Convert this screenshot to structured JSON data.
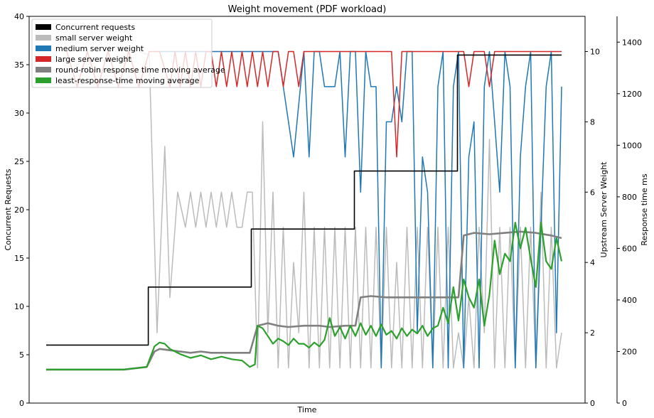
{
  "chart_data": {
    "type": "line",
    "title": "Weight movement (PDF workload)",
    "xlabel": "Time",
    "ylabel_left": "Concurrent Requests",
    "ylabel_right1": "Upstream Server Weight",
    "ylabel_right2": "Response time ms",
    "ylim_left": [
      0,
      40
    ],
    "ylim_right1": [
      0,
      11
    ],
    "ylim_right2": [
      0,
      1500
    ],
    "yticks_left": [
      0,
      5,
      10,
      15,
      20,
      25,
      30,
      35,
      40
    ],
    "yticks_right1": [
      0,
      2,
      4,
      6,
      8,
      10
    ],
    "yticks_right2": [
      0,
      200,
      400,
      600,
      800,
      1000,
      1200,
      1400
    ],
    "xlim": [
      0,
      100
    ],
    "legend_position": "top-left",
    "series": [
      {
        "name": "Concurrent requests",
        "axis": "left",
        "color": "#000000",
        "step": true,
        "x": [
          0,
          19.8,
          19.8,
          39.8,
          39.8,
          59.8,
          59.8,
          79.8,
          79.8,
          100
        ],
        "y": [
          6,
          6,
          12,
          12,
          18,
          18,
          24,
          24,
          36,
          36
        ]
      },
      {
        "name": "small server weight",
        "axis": "right1",
        "color": "#bbbbbb",
        "x": [
          18,
          20,
          21.5,
          23,
          24,
          25.5,
          27,
          28,
          29,
          30,
          31,
          32,
          33,
          34,
          35,
          36,
          37,
          38,
          39,
          40,
          41,
          42,
          43,
          44,
          45,
          46,
          47,
          48,
          49,
          50,
          51,
          52,
          53,
          54,
          55,
          56,
          57,
          58,
          59,
          60,
          61,
          62,
          63,
          64,
          65,
          66,
          67,
          68,
          69,
          70,
          71,
          72,
          73,
          74,
          75,
          76,
          77,
          78,
          79,
          80,
          81,
          82,
          83,
          84,
          85,
          86,
          87,
          88,
          89,
          90,
          91,
          92,
          93,
          94,
          95,
          96,
          97,
          98,
          99,
          100
        ],
        "y": [
          10,
          9.9,
          2,
          7.3,
          3,
          6,
          5,
          6,
          5,
          6,
          5,
          6,
          5,
          6,
          5,
          6,
          5,
          5,
          6,
          6,
          1,
          8,
          2,
          6,
          1,
          5,
          1,
          4,
          2,
          6,
          1,
          5,
          1,
          5,
          1,
          5,
          1,
          5,
          1,
          5,
          1,
          5,
          1,
          5,
          1,
          5,
          1,
          4,
          1,
          5,
          1,
          5,
          1,
          5,
          1,
          5,
          1,
          5,
          1,
          2,
          1,
          3,
          1,
          5,
          2,
          7.5,
          1,
          5,
          1,
          5,
          1,
          5,
          1,
          5,
          1,
          6,
          1,
          5,
          1,
          2
        ]
      },
      {
        "name": "medium server weight",
        "axis": "right1",
        "color": "#1f77b4",
        "x": [
          22,
          42,
          45,
          47,
          48,
          50,
          51,
          52,
          53,
          54,
          55,
          56,
          57,
          58,
          59,
          60,
          61,
          62,
          63,
          64,
          65,
          66,
          67,
          68,
          69,
          70,
          71,
          72,
          73,
          74,
          75,
          76,
          77,
          78,
          79,
          80,
          81,
          82,
          83,
          84,
          85,
          86,
          87,
          88,
          89,
          90,
          91,
          92,
          93,
          94,
          95,
          96,
          97,
          98,
          99,
          100
        ],
        "y": [
          10,
          10,
          10,
          8,
          7,
          10,
          7,
          10,
          10,
          9,
          9,
          9,
          10,
          7,
          10,
          10,
          6,
          10,
          9,
          9,
          1,
          8,
          8,
          9,
          8,
          10,
          10,
          2,
          7,
          6,
          1,
          9,
          10,
          1,
          9,
          10,
          1,
          7,
          8,
          1,
          9,
          10,
          8,
          6,
          10,
          9,
          1,
          7,
          9,
          10,
          1,
          5,
          9,
          10,
          2,
          9
        ]
      },
      {
        "name": "large server weight",
        "axis": "right1",
        "color": "#d62728",
        "x": [
          4,
          6,
          8,
          10,
          12,
          14,
          16,
          18,
          20,
          22,
          24,
          25,
          26,
          27,
          28,
          29,
          30,
          31,
          32,
          33,
          34,
          35,
          36,
          37,
          38,
          39,
          40,
          41,
          42,
          43,
          44,
          45,
          46,
          47,
          48,
          49,
          50,
          51,
          52,
          53,
          54,
          55,
          56,
          57,
          58,
          59,
          60,
          61,
          62,
          63,
          64,
          65,
          66,
          67,
          68,
          69,
          70,
          71,
          72,
          73,
          74,
          75,
          76,
          77,
          78,
          79,
          80,
          81,
          82,
          83,
          84,
          85,
          86,
          87,
          88,
          89,
          90,
          91,
          92,
          93,
          94,
          95,
          96,
          97,
          98,
          99,
          100
        ],
        "y": [
          10,
          9,
          10,
          9,
          10,
          9,
          10,
          9,
          10,
          10,
          9,
          10,
          9,
          10,
          9,
          10,
          9,
          10,
          10,
          9,
          10,
          9,
          10,
          9,
          10,
          9,
          10,
          9,
          10,
          9,
          10,
          10,
          9,
          10,
          10,
          9,
          10,
          10,
          10,
          10,
          10,
          10,
          10,
          10,
          10,
          10,
          10,
          10,
          10,
          10,
          10,
          10,
          10,
          10,
          7,
          10,
          10,
          10,
          10,
          10,
          10,
          10,
          10,
          10,
          10,
          10,
          10,
          10,
          9,
          10,
          10,
          10,
          9,
          10,
          10,
          10,
          10,
          10,
          10,
          10,
          10,
          10,
          10,
          10,
          10,
          10,
          10
        ]
      },
      {
        "name": "round-robin response time moving average",
        "axis": "right2",
        "color": "#808080",
        "x": [
          0,
          5,
          10,
          15,
          19.5,
          21,
          22,
          24,
          26,
          28,
          30,
          32,
          34,
          36,
          38,
          39.5,
          41,
          43,
          45,
          47,
          50,
          53,
          55,
          58,
          60,
          61,
          63,
          66,
          69,
          72,
          75,
          78,
          80,
          81,
          83,
          86,
          89,
          92,
          95,
          98,
          100
        ],
        "y": [
          130,
          130,
          130,
          130,
          140,
          200,
          210,
          205,
          200,
          195,
          200,
          195,
          195,
          195,
          195,
          195,
          300,
          310,
          300,
          295,
          300,
          300,
          295,
          300,
          300,
          410,
          415,
          410,
          410,
          410,
          410,
          410,
          410,
          650,
          660,
          655,
          660,
          665,
          660,
          650,
          640
        ]
      },
      {
        "name": "least-response-time moving average",
        "axis": "right2",
        "color": "#2ca02c",
        "x": [
          0,
          5,
          10,
          15,
          19.5,
          21,
          22,
          23,
          24,
          25,
          26,
          28,
          30,
          32,
          34,
          36,
          38,
          39.5,
          40.5,
          41,
          42,
          43,
          44,
          45,
          46,
          47,
          48,
          49,
          50,
          51,
          52,
          53,
          54,
          55,
          56,
          57,
          58,
          59,
          60,
          61,
          62,
          63,
          64,
          65,
          66,
          67,
          68,
          69,
          70,
          71,
          72,
          73,
          74,
          75,
          76,
          77,
          78,
          79,
          80,
          81,
          82,
          83,
          84,
          85,
          86,
          87,
          88,
          89,
          90,
          91,
          92,
          93,
          94,
          95,
          96,
          97,
          98,
          99,
          100
        ],
        "y": [
          130,
          130,
          130,
          130,
          140,
          220,
          235,
          230,
          210,
          200,
          190,
          175,
          185,
          170,
          180,
          170,
          165,
          140,
          150,
          300,
          290,
          260,
          230,
          250,
          240,
          225,
          250,
          230,
          230,
          215,
          235,
          220,
          245,
          330,
          260,
          295,
          250,
          300,
          260,
          310,
          265,
          300,
          260,
          305,
          265,
          280,
          250,
          290,
          260,
          285,
          270,
          300,
          260,
          290,
          300,
          370,
          310,
          450,
          320,
          480,
          410,
          370,
          480,
          300,
          420,
          630,
          500,
          580,
          550,
          700,
          600,
          680,
          560,
          450,
          700,
          550,
          520,
          640,
          550
        ]
      }
    ]
  }
}
